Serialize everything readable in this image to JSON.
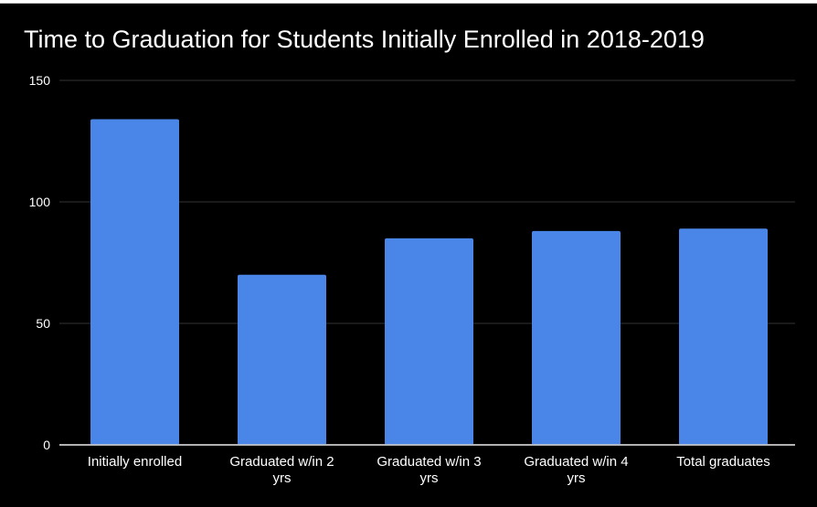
{
  "chart_data": {
    "type": "bar",
    "title": "Time to Graduation for Students Initially Enrolled in 2018-2019",
    "categories": [
      [
        "Initially enrolled"
      ],
      [
        "Graduated w/in 2",
        "yrs"
      ],
      [
        "Graduated w/in 3",
        "yrs"
      ],
      [
        "Graduated w/in 4",
        "yrs"
      ],
      [
        "Total graduates"
      ]
    ],
    "values": [
      134,
      70,
      85,
      88,
      89
    ],
    "xlabel": "",
    "ylabel": "",
    "ylim": [
      0,
      150
    ],
    "yticks": [
      "0",
      "50",
      "100",
      "150"
    ],
    "grid": true,
    "legend": "none",
    "colors": {
      "bar": "#4a86e8",
      "background": "#000000",
      "grid": "#333333",
      "text": "#ffffff"
    }
  }
}
